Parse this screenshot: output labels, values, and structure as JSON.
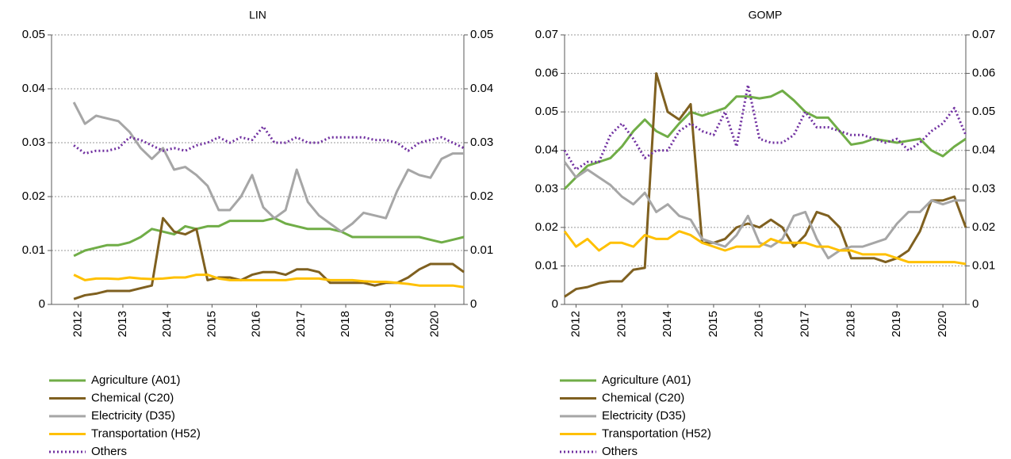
{
  "chart_data": [
    {
      "type": "line",
      "title": "LIN",
      "x": [
        2011.9,
        2012.15,
        2012.4,
        2012.65,
        2012.9,
        2013.15,
        2013.4,
        2013.65,
        2013.9,
        2014.15,
        2014.4,
        2014.65,
        2014.9,
        2015.15,
        2015.4,
        2015.65,
        2015.9,
        2016.15,
        2016.4,
        2016.65,
        2016.9,
        2017.15,
        2017.4,
        2017.65,
        2017.9,
        2018.15,
        2018.4,
        2018.65,
        2018.9,
        2019.15,
        2019.4,
        2019.65,
        2019.9,
        2020.15,
        2020.4,
        2020.65
      ],
      "xlim": [
        2011.4,
        2020.65
      ],
      "xticks": [
        2012,
        2013,
        2014,
        2015,
        2016,
        2017,
        2018,
        2019,
        2020
      ],
      "ylim": [
        0,
        0.05
      ],
      "yticks": [
        0,
        0.01,
        0.02,
        0.03,
        0.04,
        0.05
      ],
      "y2lim": [
        0,
        0.05
      ],
      "y2ticks": [
        0,
        0.01,
        0.02,
        0.03,
        0.04,
        0.05
      ],
      "grid": true,
      "legend": "bottom",
      "series": [
        {
          "name": "Agriculture (A01)",
          "color": "#70ad47",
          "line_style": "solid",
          "values": [
            0.009,
            0.01,
            0.0105,
            0.011,
            0.011,
            0.0115,
            0.0125,
            0.014,
            0.0135,
            0.013,
            0.0145,
            0.014,
            0.0145,
            0.0145,
            0.0155,
            0.0155,
            0.0155,
            0.0155,
            0.016,
            0.015,
            0.0145,
            0.014,
            0.014,
            0.014,
            0.0135,
            0.0125,
            0.0125,
            0.0125,
            0.0125,
            0.0125,
            0.0125,
            0.0125,
            0.012,
            0.0115,
            0.012,
            0.0125
          ]
        },
        {
          "name": "Chemical (C20)",
          "color": "#7f6020",
          "line_style": "solid",
          "values": [
            0.001,
            0.0017,
            0.002,
            0.0025,
            0.0025,
            0.0025,
            0.003,
            0.0035,
            0.016,
            0.0135,
            0.013,
            0.014,
            0.0045,
            0.005,
            0.005,
            0.0045,
            0.0055,
            0.006,
            0.006,
            0.0055,
            0.0065,
            0.0065,
            0.006,
            0.004,
            0.004,
            0.004,
            0.004,
            0.0035,
            0.004,
            0.004,
            0.005,
            0.0065,
            0.0075,
            0.0075,
            0.0075,
            0.006
          ]
        },
        {
          "name": "Electricity (D35)",
          "color": "#a6a6a6",
          "line_style": "solid",
          "values": [
            0.0375,
            0.0335,
            0.035,
            0.0345,
            0.034,
            0.032,
            0.029,
            0.027,
            0.029,
            0.025,
            0.0255,
            0.024,
            0.022,
            0.0175,
            0.0175,
            0.02,
            0.024,
            0.018,
            0.016,
            0.0175,
            0.025,
            0.019,
            0.0165,
            0.015,
            0.0135,
            0.015,
            0.017,
            0.0165,
            0.016,
            0.021,
            0.025,
            0.024,
            0.0235,
            0.027,
            0.028,
            0.028
          ]
        },
        {
          "name": "Transportation (H52)",
          "color": "#ffc000",
          "line_style": "solid",
          "values": [
            0.0055,
            0.0045,
            0.0048,
            0.0048,
            0.0047,
            0.005,
            0.0048,
            0.0047,
            0.0048,
            0.005,
            0.005,
            0.0055,
            0.0055,
            0.0048,
            0.0045,
            0.0045,
            0.0045,
            0.0045,
            0.0045,
            0.0045,
            0.0048,
            0.0048,
            0.0048,
            0.0045,
            0.0045,
            0.0045,
            0.0043,
            0.0042,
            0.0042,
            0.004,
            0.0038,
            0.0035,
            0.0035,
            0.0035,
            0.0035,
            0.0032
          ]
        },
        {
          "name": "Others",
          "color": "#7030a0",
          "line_style": "dotted",
          "values": [
            0.0295,
            0.028,
            0.0285,
            0.0285,
            0.029,
            0.031,
            0.0305,
            0.0295,
            0.0285,
            0.029,
            0.0285,
            0.0295,
            0.03,
            0.031,
            0.03,
            0.031,
            0.0305,
            0.033,
            0.03,
            0.03,
            0.031,
            0.03,
            0.03,
            0.031,
            0.031,
            0.031,
            0.031,
            0.0305,
            0.0305,
            0.03,
            0.0285,
            0.03,
            0.0305,
            0.031,
            0.03,
            0.029
          ]
        }
      ]
    },
    {
      "type": "line",
      "title": "GOMP",
      "x": [
        2011.75,
        2012,
        2012.25,
        2012.5,
        2012.75,
        2013,
        2013.25,
        2013.5,
        2013.75,
        2014,
        2014.25,
        2014.5,
        2014.75,
        2015,
        2015.25,
        2015.5,
        2015.75,
        2016,
        2016.25,
        2016.5,
        2016.75,
        2017,
        2017.25,
        2017.5,
        2017.75,
        2018,
        2018.25,
        2018.5,
        2018.75,
        2019,
        2019.25,
        2019.5,
        2019.75,
        2020,
        2020.25,
        2020.5
      ],
      "xlim": [
        2011.75,
        2020.5
      ],
      "xticks": [
        2012,
        2013,
        2014,
        2015,
        2016,
        2017,
        2018,
        2019,
        2020
      ],
      "ylim": [
        0,
        0.07
      ],
      "yticks": [
        0,
        0.01,
        0.02,
        0.03,
        0.04,
        0.05,
        0.06,
        0.07
      ],
      "y2lim": [
        0,
        0.07
      ],
      "y2ticks": [
        0,
        0.01,
        0.02,
        0.03,
        0.04,
        0.05,
        0.06,
        0.07
      ],
      "grid": true,
      "legend": "bottom",
      "series": [
        {
          "name": "Agriculture (A01)",
          "color": "#70ad47",
          "line_style": "solid",
          "values": [
            0.03,
            0.033,
            0.036,
            0.037,
            0.038,
            0.041,
            0.045,
            0.048,
            0.045,
            0.0435,
            0.047,
            0.05,
            0.049,
            0.05,
            0.051,
            0.054,
            0.054,
            0.0535,
            0.054,
            0.0555,
            0.053,
            0.05,
            0.0485,
            0.0485,
            0.045,
            0.0415,
            0.042,
            0.043,
            0.0425,
            0.042,
            0.0425,
            0.043,
            0.04,
            0.0385,
            0.041,
            0.043
          ]
        },
        {
          "name": "Chemical (C20)",
          "color": "#7f6020",
          "line_style": "solid",
          "values": [
            0.002,
            0.004,
            0.0045,
            0.0055,
            0.006,
            0.006,
            0.009,
            0.0095,
            0.06,
            0.05,
            0.048,
            0.052,
            0.016,
            0.016,
            0.017,
            0.02,
            0.021,
            0.02,
            0.022,
            0.02,
            0.015,
            0.018,
            0.024,
            0.023,
            0.02,
            0.012,
            0.012,
            0.012,
            0.011,
            0.012,
            0.014,
            0.019,
            0.027,
            0.027,
            0.028,
            0.02
          ]
        },
        {
          "name": "Electricity (D35)",
          "color": "#a6a6a6",
          "line_style": "solid",
          "values": [
            0.037,
            0.033,
            0.035,
            0.033,
            0.031,
            0.028,
            0.026,
            0.029,
            0.024,
            0.026,
            0.023,
            0.022,
            0.017,
            0.016,
            0.015,
            0.018,
            0.023,
            0.016,
            0.015,
            0.017,
            0.023,
            0.024,
            0.017,
            0.012,
            0.014,
            0.015,
            0.015,
            0.016,
            0.017,
            0.021,
            0.024,
            0.024,
            0.027,
            0.026,
            0.027,
            0.027
          ]
        },
        {
          "name": "Transportation (H52)",
          "color": "#ffc000",
          "line_style": "solid",
          "values": [
            0.019,
            0.015,
            0.017,
            0.014,
            0.016,
            0.016,
            0.015,
            0.018,
            0.017,
            0.017,
            0.019,
            0.018,
            0.016,
            0.015,
            0.014,
            0.015,
            0.015,
            0.015,
            0.017,
            0.016,
            0.016,
            0.016,
            0.015,
            0.015,
            0.014,
            0.014,
            0.013,
            0.013,
            0.013,
            0.012,
            0.011,
            0.011,
            0.011,
            0.011,
            0.011,
            0.0105
          ]
        },
        {
          "name": "Others",
          "color": "#7030a0",
          "line_style": "dotted",
          "values": [
            0.04,
            0.035,
            0.037,
            0.037,
            0.044,
            0.047,
            0.043,
            0.038,
            0.04,
            0.04,
            0.045,
            0.047,
            0.045,
            0.044,
            0.05,
            0.041,
            0.057,
            0.043,
            0.042,
            0.042,
            0.044,
            0.05,
            0.046,
            0.046,
            0.045,
            0.044,
            0.044,
            0.043,
            0.042,
            0.043,
            0.04,
            0.042,
            0.045,
            0.047,
            0.051,
            0.044
          ]
        }
      ]
    }
  ]
}
